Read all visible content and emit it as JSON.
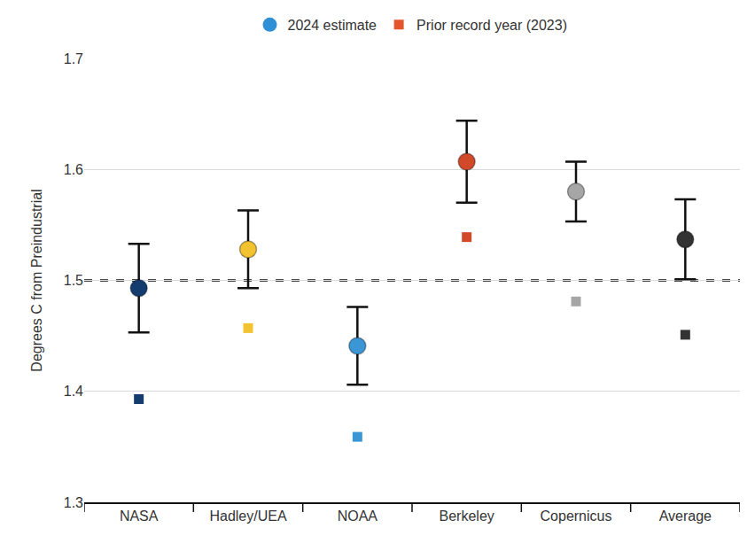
{
  "chart_data": {
    "type": "scatter",
    "y_label": "Degrees C from Preindustrial",
    "categories": [
      "NASA",
      "Hadley/UEA",
      "NOAA",
      "Berkeley",
      "Copernicus",
      "Average"
    ],
    "series": [
      {
        "name": "2024 estimate",
        "marker": "circle",
        "color": "#2f8fd6",
        "colors": [
          "#143c6e",
          "#f2c230",
          "#3b96d6",
          "#d2492a",
          "#a6a6a6",
          "#333333"
        ],
        "values": [
          1.493,
          1.528,
          1.441,
          1.607,
          1.58,
          1.537
        ],
        "error": [
          0.04,
          0.035,
          0.035,
          0.037,
          0.027,
          0.036
        ]
      },
      {
        "name": "Prior record year (2023)",
        "marker": "square",
        "color": "#e4572e",
        "colors": [
          "#143c6e",
          "#f2c230",
          "#3b96d6",
          "#d2492a",
          "#a6a6a6",
          "#333333"
        ],
        "values": [
          1.393,
          1.457,
          1.359,
          1.539,
          1.481,
          1.451
        ]
      }
    ],
    "ylim": [
      1.3,
      1.7
    ],
    "yticks": [
      1.3,
      1.4,
      1.5,
      1.6,
      1.7
    ],
    "grid": true,
    "reference_line": 1.5,
    "legend": "top"
  }
}
